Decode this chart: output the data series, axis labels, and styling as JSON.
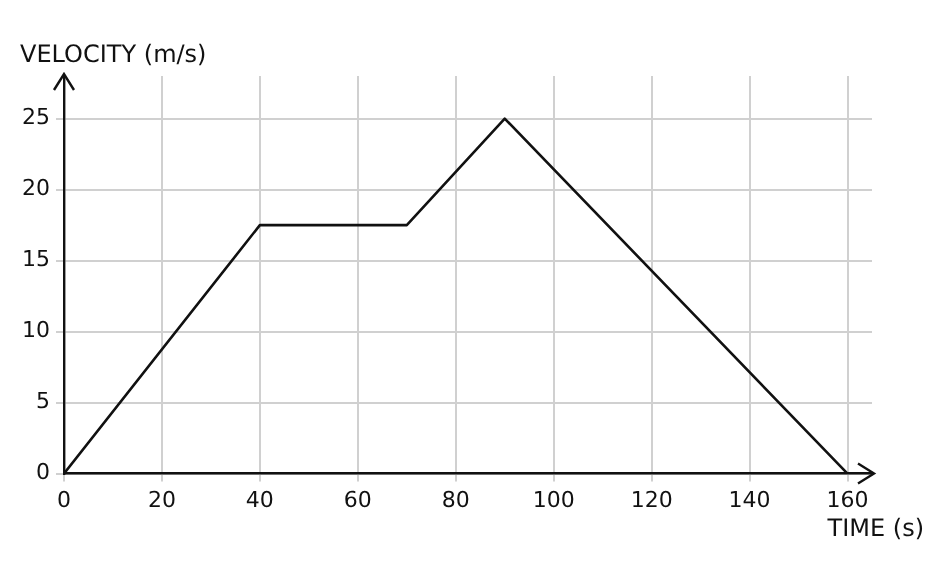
{
  "chart_data": {
    "type": "line",
    "xlabel": "TIME (s)",
    "ylabel": "VELOCITY (m/s)",
    "x": [
      0,
      40,
      70,
      90,
      160
    ],
    "values": [
      0,
      17.5,
      17.5,
      25,
      0
    ],
    "color": "#111111",
    "xlim": [
      0,
      165
    ],
    "ylim": [
      0,
      28
    ],
    "xticks": [
      0,
      20,
      40,
      60,
      80,
      100,
      120,
      140,
      160
    ],
    "yticks": [
      0,
      5,
      10,
      15,
      20,
      25
    ],
    "grid": true,
    "marker": "none",
    "line_style": "solid"
  }
}
